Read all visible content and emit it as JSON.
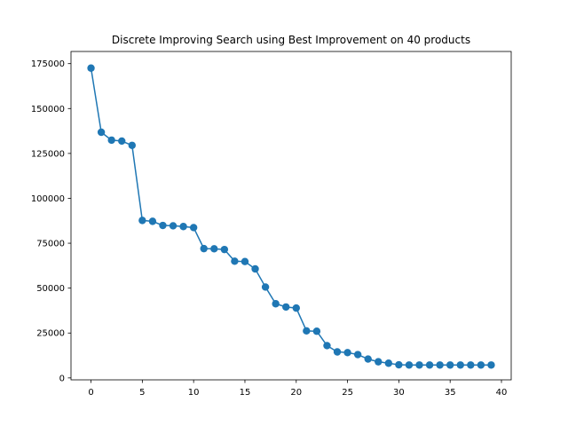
{
  "chart_data": {
    "type": "line",
    "title": "Discrete Improving Search using Best Improvement on 40 products",
    "xlabel": "",
    "ylabel": "",
    "x": [
      0,
      1,
      2,
      3,
      4,
      5,
      6,
      7,
      8,
      9,
      10,
      11,
      12,
      13,
      14,
      15,
      16,
      17,
      18,
      19,
      20,
      21,
      22,
      23,
      24,
      25,
      26,
      27,
      28,
      29,
      30,
      31,
      32,
      33,
      34,
      35,
      36,
      37,
      38,
      39
    ],
    "series": [
      {
        "values": [
          172500,
          136800,
          132400,
          131900,
          129500,
          87700,
          87200,
          84900,
          84700,
          84300,
          83700,
          72000,
          71900,
          71500,
          65000,
          64800,
          60700,
          50600,
          41300,
          39500,
          38900,
          26200,
          26000,
          18000,
          14500,
          14100,
          13000,
          10500,
          9000,
          8200,
          7300,
          7200,
          7200,
          7200,
          7200,
          7200,
          7200,
          7200,
          7200,
          7200
        ],
        "color": "#1f77b4"
      }
    ],
    "xticks": [
      0,
      5,
      10,
      15,
      20,
      25,
      30,
      35,
      40
    ],
    "yticks": [
      0,
      25000,
      50000,
      75000,
      100000,
      125000,
      150000,
      175000
    ],
    "xlim": [
      -1.95,
      40.95
    ],
    "ylim": [
      -1070,
      181770
    ],
    "grid": false,
    "legend": "none"
  }
}
